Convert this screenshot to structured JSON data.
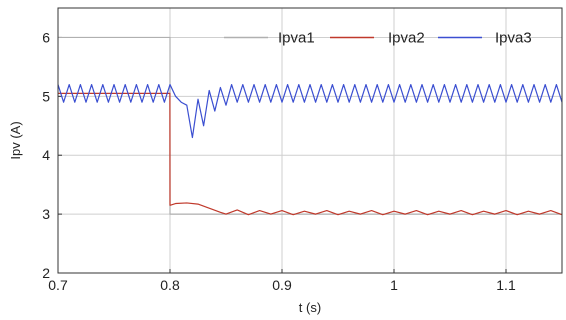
{
  "chart_data": {
    "type": "line",
    "title": "",
    "xlabel": "t (s)",
    "ylabel": "Ipv (A)",
    "xlim": [
      0.7,
      1.15
    ],
    "ylim": [
      2,
      6.5
    ],
    "xticks": [
      0.7,
      0.8,
      0.9,
      1,
      1.1
    ],
    "xtick_labels": [
      "0.7",
      "0.8",
      "0.9",
      "1",
      "1.1"
    ],
    "yticks": [
      2,
      3,
      4,
      5,
      6
    ],
    "ytick_labels": [
      "2",
      "3",
      "4",
      "5",
      "6"
    ],
    "grid": true,
    "legend_position": "top-right",
    "series": [
      {
        "name": "Ipva1",
        "color": "#b0b0b0",
        "x": [
          0.7,
          0.8,
          0.8,
          1.15
        ],
        "y": [
          6.0,
          6.0,
          3.0,
          3.0
        ]
      },
      {
        "name": "Ipva2",
        "color": "#c0392b",
        "x": [
          0.7,
          0.7999,
          0.8,
          0.805,
          0.815,
          0.825,
          0.835,
          0.845,
          0.85,
          0.86,
          0.87,
          0.88,
          0.89,
          0.9,
          0.91,
          0.92,
          0.93,
          0.94,
          0.95,
          0.96,
          0.97,
          0.98,
          0.99,
          1.0,
          1.01,
          1.02,
          1.03,
          1.04,
          1.05,
          1.06,
          1.07,
          1.08,
          1.09,
          1.1,
          1.11,
          1.12,
          1.13,
          1.14,
          1.15
        ],
        "y": [
          5.05,
          5.05,
          3.15,
          3.18,
          3.19,
          3.17,
          3.1,
          3.03,
          3.0,
          3.07,
          2.99,
          3.06,
          3.0,
          3.06,
          2.99,
          3.05,
          3.0,
          3.06,
          2.99,
          3.05,
          3.0,
          3.06,
          2.99,
          3.05,
          3.0,
          3.06,
          2.99,
          3.05,
          3.0,
          3.06,
          2.99,
          3.05,
          3.0,
          3.06,
          2.99,
          3.05,
          3.0,
          3.06,
          2.99
        ]
      },
      {
        "name": "Ipva3",
        "color": "#3b4fd1",
        "x": [
          0.7,
          0.705,
          0.71,
          0.715,
          0.72,
          0.725,
          0.73,
          0.735,
          0.74,
          0.745,
          0.75,
          0.755,
          0.76,
          0.765,
          0.77,
          0.775,
          0.78,
          0.785,
          0.79,
          0.795,
          0.8,
          0.805,
          0.81,
          0.815,
          0.82,
          0.825,
          0.83,
          0.835,
          0.84,
          0.845,
          0.85,
          0.855,
          0.86,
          0.865,
          0.87,
          0.875,
          0.88,
          0.885,
          0.89,
          0.895,
          0.9,
          0.905,
          0.91,
          0.915,
          0.92,
          0.925,
          0.93,
          0.935,
          0.94,
          0.945,
          0.95,
          0.955,
          0.96,
          0.965,
          0.97,
          0.975,
          0.98,
          0.985,
          0.99,
          0.995,
          1.0,
          1.005,
          1.01,
          1.015,
          1.02,
          1.025,
          1.03,
          1.035,
          1.04,
          1.045,
          1.05,
          1.055,
          1.06,
          1.065,
          1.07,
          1.075,
          1.08,
          1.085,
          1.09,
          1.095,
          1.1,
          1.105,
          1.11,
          1.115,
          1.12,
          1.125,
          1.13,
          1.135,
          1.14,
          1.145,
          1.15
        ],
        "y": [
          5.2,
          4.9,
          5.2,
          4.9,
          5.2,
          4.9,
          5.2,
          4.9,
          5.2,
          4.9,
          5.2,
          4.9,
          5.2,
          4.9,
          5.2,
          4.9,
          5.2,
          4.9,
          5.2,
          4.9,
          5.2,
          5.0,
          4.9,
          4.85,
          4.3,
          4.95,
          4.5,
          5.1,
          4.75,
          5.15,
          4.85,
          5.2,
          4.9,
          5.2,
          4.9,
          5.2,
          4.9,
          5.2,
          4.9,
          5.2,
          4.9,
          5.2,
          4.9,
          5.2,
          4.9,
          5.2,
          4.9,
          5.2,
          4.9,
          5.2,
          4.9,
          5.2,
          4.9,
          5.2,
          4.9,
          5.2,
          4.9,
          5.2,
          4.9,
          5.2,
          4.9,
          5.2,
          4.9,
          5.2,
          4.9,
          5.2,
          4.9,
          5.2,
          4.9,
          5.2,
          4.9,
          5.2,
          4.9,
          5.2,
          4.9,
          5.2,
          4.9,
          5.2,
          4.9,
          5.2,
          4.9,
          5.2,
          4.9,
          5.2,
          4.9,
          5.2,
          4.9,
          5.2,
          4.9,
          5.2,
          4.9
        ]
      }
    ]
  }
}
